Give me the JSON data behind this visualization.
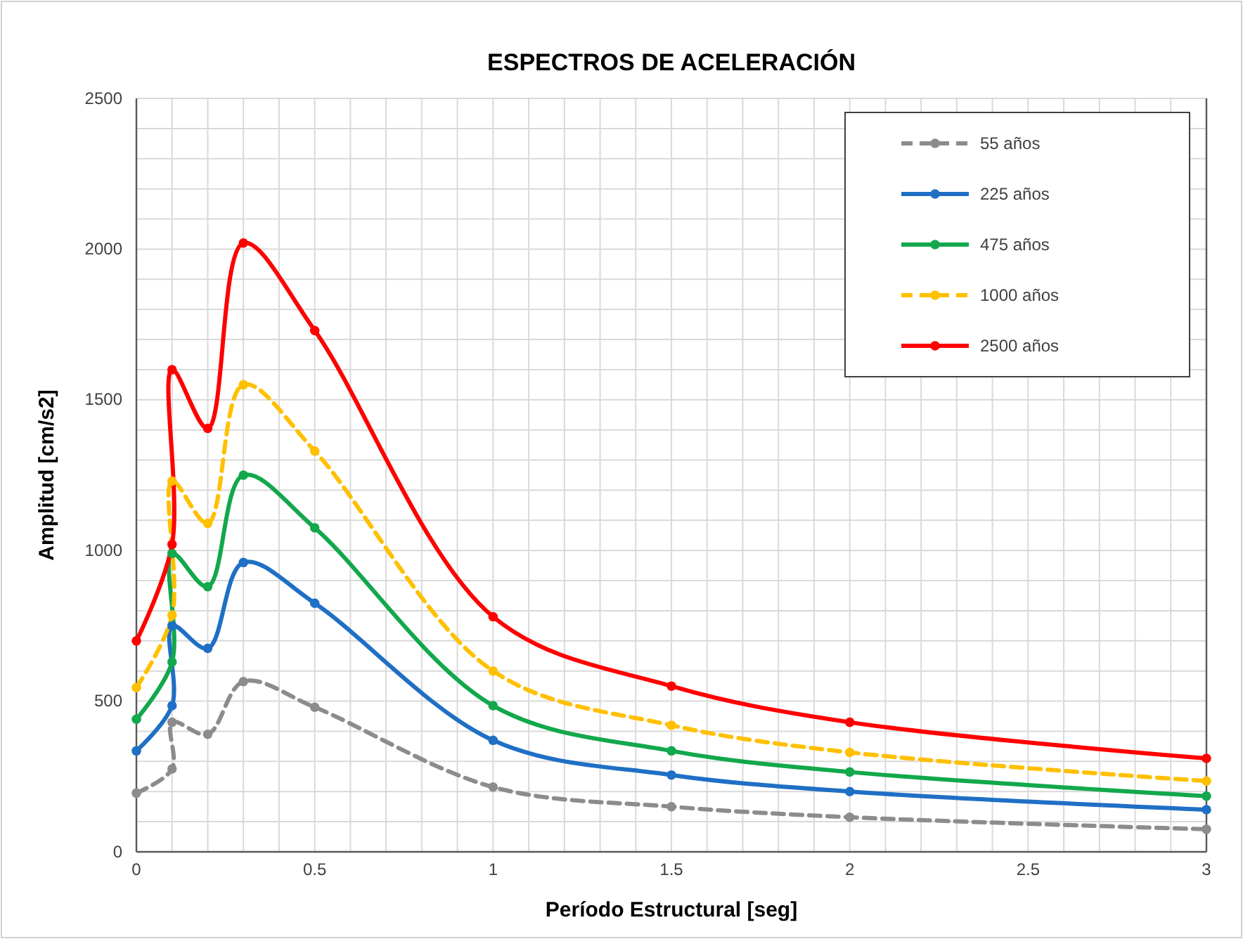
{
  "chart_data": {
    "type": "line",
    "title": "ESPECTROS DE ACELERACIÓN",
    "xlabel": "Período Estructural [seg]",
    "ylabel": "Amplitud [cm/s2]",
    "xlim": [
      0,
      3
    ],
    "ylim": [
      0,
      2500
    ],
    "xticks": [
      0,
      {
        "value": 0.1,
        "label": null
      },
      {
        "value": 0.2,
        "label": null
      },
      {
        "value": 0.3,
        "label": null
      },
      {
        "value": 0.4,
        "label": null
      },
      0.5,
      {
        "value": 0.6,
        "label": null
      },
      {
        "value": 0.7,
        "label": null
      },
      {
        "value": 0.8,
        "label": null
      },
      {
        "value": 0.9,
        "label": null
      },
      1,
      {
        "value": 1.1,
        "label": null
      },
      {
        "value": 1.2,
        "label": null
      },
      {
        "value": 1.3,
        "label": null
      },
      {
        "value": 1.4,
        "label": null
      },
      1.5,
      {
        "value": 1.6,
        "label": null
      },
      {
        "value": 1.7,
        "label": null
      },
      {
        "value": 1.8,
        "label": null
      },
      {
        "value": 1.9,
        "label": null
      },
      2,
      {
        "value": 2.1,
        "label": null
      },
      {
        "value": 2.2,
        "label": null
      },
      {
        "value": 2.3,
        "label": null
      },
      {
        "value": 2.4,
        "label": null
      },
      2.5,
      {
        "value": 2.6,
        "label": null
      },
      {
        "value": 2.7,
        "label": null
      },
      {
        "value": 2.8,
        "label": null
      },
      {
        "value": 2.9,
        "label": null
      },
      3
    ],
    "yticks": [
      0,
      {
        "value": 100,
        "label": null
      },
      {
        "value": 200,
        "label": null
      },
      {
        "value": 300,
        "label": null
      },
      {
        "value": 400,
        "label": null
      },
      500,
      {
        "value": 600,
        "label": null
      },
      {
        "value": 700,
        "label": null
      },
      {
        "value": 800,
        "label": null
      },
      {
        "value": 900,
        "label": null
      },
      1000,
      {
        "value": 1100,
        "label": null
      },
      {
        "value": 1200,
        "label": null
      },
      {
        "value": 1300,
        "label": null
      },
      {
        "value": 1400,
        "label": null
      },
      1500,
      {
        "value": 1600,
        "label": null
      },
      {
        "value": 1700,
        "label": null
      },
      {
        "value": 1800,
        "label": null
      },
      {
        "value": 1900,
        "label": null
      },
      2000,
      {
        "value": 2100,
        "label": null
      },
      {
        "value": 2200,
        "label": null
      },
      {
        "value": 2300,
        "label": null
      },
      {
        "value": 2400,
        "label": null
      },
      2500
    ],
    "grid": true,
    "legend": "top right",
    "marker": "circle",
    "x": [
      0,
      0.1,
      0.1,
      0.2,
      0.3,
      0.5,
      1,
      1.5,
      2,
      3
    ],
    "series": [
      {
        "name": "55 años",
        "color": "#8c8c8c",
        "line_style": "dashed",
        "values": [
          195,
          275,
          430,
          390,
          565,
          480,
          215,
          150,
          115,
          75
        ]
      },
      {
        "name": "225 años",
        "color": "#1f6fc5",
        "line_style": "solid",
        "values": [
          335,
          485,
          750,
          675,
          960,
          825,
          370,
          255,
          200,
          140
        ]
      },
      {
        "name": "475 años",
        "color": "#12a84b",
        "line_style": "solid",
        "values": [
          440,
          630,
          990,
          880,
          1250,
          1075,
          485,
          335,
          265,
          185
        ]
      },
      {
        "name": "1000 años",
        "color": "#ffc000",
        "line_style": "dashed",
        "values": [
          545,
          785,
          1230,
          1090,
          1550,
          1330,
          600,
          420,
          330,
          235
        ]
      },
      {
        "name": "2500 años",
        "color": "#ff0000",
        "line_style": "solid",
        "values": [
          700,
          1020,
          1600,
          1405,
          2020,
          1730,
          780,
          550,
          430,
          310
        ]
      }
    ]
  }
}
